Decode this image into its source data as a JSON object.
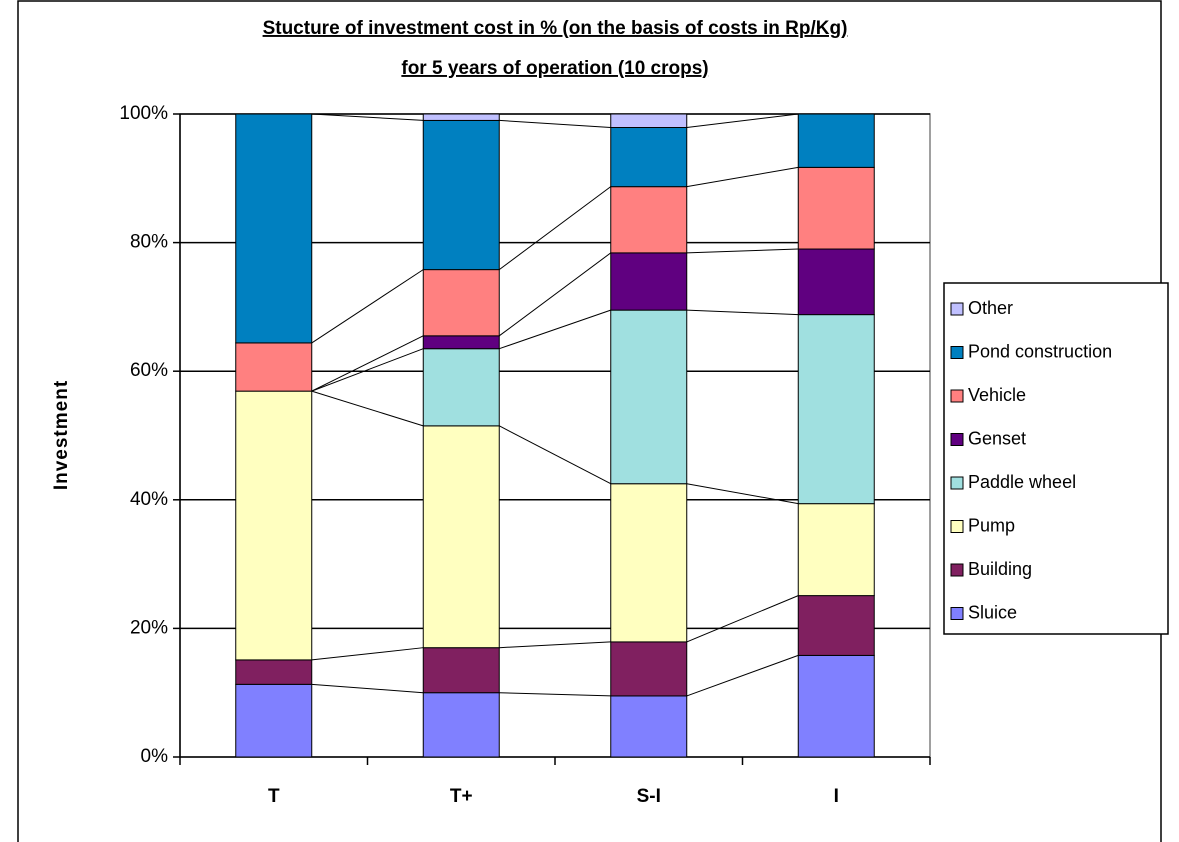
{
  "chart_data": {
    "type": "stacked_bar",
    "title": [
      "Stucture of investment cost in % (on the basis of costs in Rp/Kg)",
      "for 5 years of operation (10 crops)"
    ],
    "ylabel": "Investment",
    "categories": [
      "T",
      "T+",
      "S-I",
      "I"
    ],
    "series": [
      {
        "name": "Sluice",
        "color": "#8080ff",
        "values": [
          11.3,
          10,
          9.5,
          15.8
        ]
      },
      {
        "name": "Building",
        "color": "#802060",
        "values": [
          3.8,
          7,
          8.4,
          9.3
        ]
      },
      {
        "name": "Pump",
        "color": "#ffffc0",
        "values": [
          41.8,
          34.5,
          24.6,
          14.3
        ]
      },
      {
        "name": "Paddle wheel",
        "color": "#a0e0e0",
        "values": [
          0,
          12,
          27,
          29.4
        ]
      },
      {
        "name": "Genset",
        "color": "#600080",
        "values": [
          0,
          2,
          8.9,
          10.2
        ]
      },
      {
        "name": "Vehicle",
        "color": "#ff8080",
        "values": [
          7.5,
          10.3,
          10.3,
          12.7
        ]
      },
      {
        "name": "Pond construction",
        "color": "#0080c0",
        "values": [
          35.6,
          23.2,
          9.2,
          8.3
        ]
      },
      {
        "name": "Other",
        "color": "#c0c0ff",
        "values": [
          0,
          1,
          2.1,
          0
        ]
      }
    ],
    "ylim": [
      0,
      100
    ],
    "yticks": [
      {
        "value": 0,
        "label": "0%"
      },
      {
        "value": 20,
        "label": "20%"
      },
      {
        "value": 40,
        "label": "40%"
      },
      {
        "value": 60,
        "label": "60%"
      },
      {
        "value": 80,
        "label": "80%"
      },
      {
        "value": 100,
        "label": "100%"
      }
    ],
    "grid": true,
    "series_lines": true,
    "legend": "right"
  }
}
